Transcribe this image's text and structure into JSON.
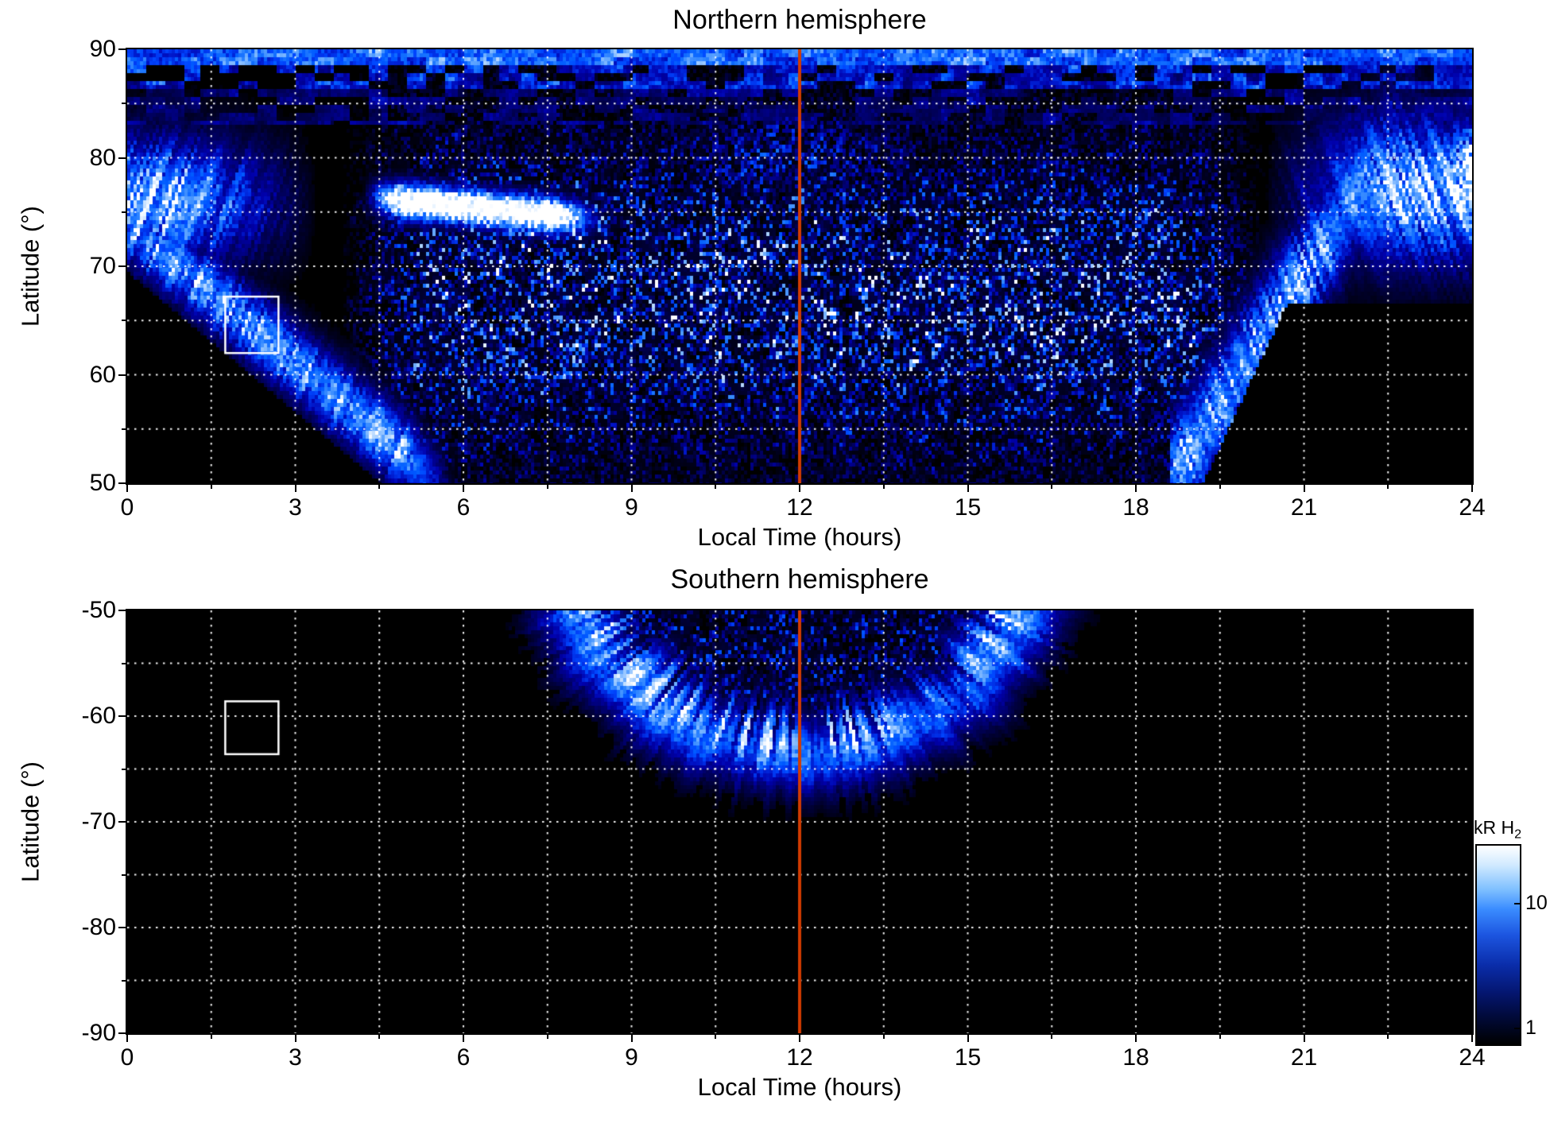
{
  "figure": {
    "background": "#ffffff",
    "kind": "dual-hemisphere auroral emission map"
  },
  "chart_data": [
    {
      "type": "heatmap",
      "id": "north",
      "title": "Northern hemisphere",
      "xlabel": "Local Time (hours)",
      "ylabel": "Latitude (°)",
      "xlim": [
        0,
        24
      ],
      "ylim": [
        50,
        90
      ],
      "xticks": [
        0,
        3,
        6,
        9,
        12,
        15,
        18,
        21,
        24
      ],
      "yticks": [
        90,
        80,
        70,
        60,
        50
      ],
      "grid": {
        "x_step": 1.5,
        "y_step": 5,
        "style": "dotted",
        "color": "#ffffff"
      },
      "meridian_line": {
        "x": 12,
        "color": "#d23b01"
      },
      "selection_box": {
        "x": [
          1.75,
          2.7
        ],
        "y": [
          62,
          67.2
        ],
        "color": "#ffffff"
      },
      "value_units": "kR H2",
      "scale": "log",
      "features": [
        "bright dawn auroral emission 0-3 h at 70-82 deg, partly saturated white",
        "diagonal auroral arc descending from (0 h, 74 deg) to (5.5 h, 50 deg)",
        "saturated white emission patch from 4.5-8 h near 75-77 deg",
        "speckled polar emission across 5-19 h between 50 and 88 deg",
        "dusk-side fan of arcs rising from (19 h, 50 deg) to (22 h, 80 deg), bright 21-24 h at 70-85 deg",
        "streaky blue band 86-90 deg at all local times",
        "no data (black) 0-5 h below the dawn arc and 20-24 h below ~66 deg"
      ]
    },
    {
      "type": "heatmap",
      "id": "south",
      "title": "Southern hemisphere",
      "xlabel": "Local Time (hours)",
      "ylabel": "Latitude (°)",
      "xlim": [
        0,
        24
      ],
      "ylim": [
        -90,
        -50
      ],
      "xticks": [
        0,
        3,
        6,
        9,
        12,
        15,
        18,
        21,
        24
      ],
      "yticks": [
        -50,
        -60,
        -70,
        -80,
        -90
      ],
      "grid": {
        "x_step": 1.5,
        "y_step": 5,
        "style": "dotted",
        "color": "#ffffff"
      },
      "meridian_line": {
        "x": 12,
        "color": "#d23b01"
      },
      "selection_box": {
        "x": [
          1.75,
          2.7
        ],
        "y": [
          -63.6,
          -58.6
        ],
        "color": "#ffffff"
      },
      "value_units": "kR H2",
      "scale": "log",
      "features": [
        "crescent-shaped auroral oval centred near noon, spanning ~8-16 h local time between -50 and -68 deg with radial streaks",
        "sparse speckle inside the crescent near -50 to -55 deg around noon",
        "no data (black) everywhere else"
      ]
    }
  ],
  "colorbar": {
    "label_main": "kR H",
    "label_sub": "2",
    "ticks": [
      "10",
      "1"
    ],
    "tick_positions": [
      0.3,
      0.93
    ],
    "scale": "log",
    "gradient_stops": [
      "#ffffff 0%",
      "#cfe9ff 10%",
      "#7fc0ff 22%",
      "#3a8cff 32%",
      "#1c55e0 45%",
      "#0a2daa 60%",
      "#041670 74%",
      "#010a3a 86%",
      "#000000 100%"
    ]
  }
}
